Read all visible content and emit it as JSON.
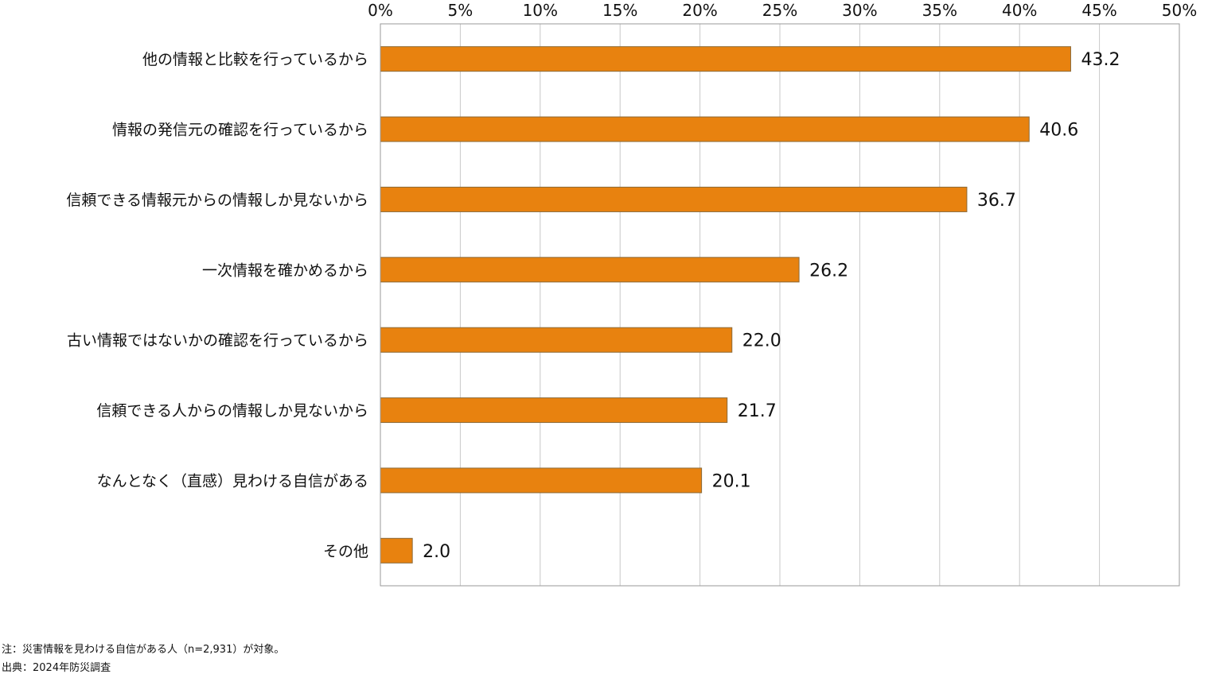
{
  "chart_data": {
    "type": "bar",
    "orientation": "horizontal",
    "categories": [
      "他の情報と比較を行っているから",
      "情報の発信元の確認を行っているから",
      "信頼できる情報元からの情報しか見ないから",
      "一次情報を確かめるから",
      "古い情報ではないかの確認を行っているから",
      "信頼できる人からの情報しか見ないから",
      "なんとなく（直感）見わける自信がある",
      "その他"
    ],
    "values": [
      43.2,
      40.6,
      36.7,
      26.2,
      22.0,
      21.7,
      20.1,
      2.0
    ],
    "value_labels": [
      "43.2",
      "40.6",
      "36.7",
      "26.2",
      "22.0",
      "21.7",
      "20.1",
      "2.0"
    ],
    "xlim": [
      0,
      50
    ],
    "xticks": [
      0,
      5,
      10,
      15,
      20,
      25,
      30,
      35,
      40,
      45,
      50
    ],
    "xtick_labels": [
      "0%",
      "5%",
      "10%",
      "15%",
      "20%",
      "25%",
      "30%",
      "35%",
      "40%",
      "45%",
      "50%"
    ],
    "x_axis_position": "top",
    "grid": true,
    "bar_color": "#E8820F",
    "bar_edge_color": "#8a6a3a",
    "grid_color": "#c8c8c8"
  },
  "footnotes": {
    "note": "注：災害情報を見わける自信がある人（n=2,931）が対象。",
    "source": "出典：2024年防災調査"
  }
}
